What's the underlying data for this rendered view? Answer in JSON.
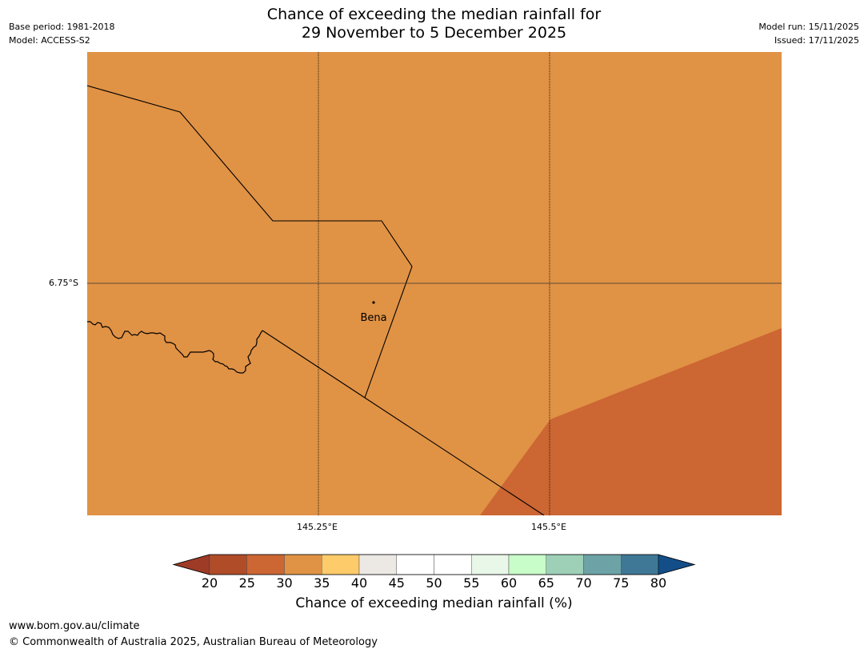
{
  "header": {
    "title_line1": "Chance of exceeding the median rainfall for",
    "title_line2": "29 November to 5 December 2025",
    "base_period": "Base period: 1981-2018",
    "model": "Model: ACCESS-S2",
    "model_run": "Model run: 15/11/2025",
    "issued": "Issued: 17/11/2025"
  },
  "map": {
    "lat_label": "6.75°S",
    "lon_labels": [
      "145.25°E",
      "145.5°E"
    ],
    "place_name": "Bena",
    "region_colors": {
      "band_30_35": "#e09245",
      "band_25_30": "#cc6633"
    }
  },
  "colorbar": {
    "label": "Chance of exceeding median rainfall (%)",
    "ticks": [
      "20",
      "25",
      "30",
      "35",
      "40",
      "45",
      "50",
      "55",
      "60",
      "65",
      "70",
      "75",
      "80"
    ],
    "under_color": "#9e3b26",
    "over_color": "#134e89",
    "colors": [
      "#b04c28",
      "#cc6633",
      "#e09245",
      "#fecb6a",
      "#ece8e4",
      "#ffffff",
      "#ffffff",
      "#e9f7e9",
      "#c8fcc8",
      "#9dd0b7",
      "#6da3a6",
      "#3f7896"
    ]
  },
  "footer": {
    "url": "www.bom.gov.au/climate",
    "copyright": "© Commonwealth of Australia 2025, Australian Bureau of Meteorology"
  }
}
